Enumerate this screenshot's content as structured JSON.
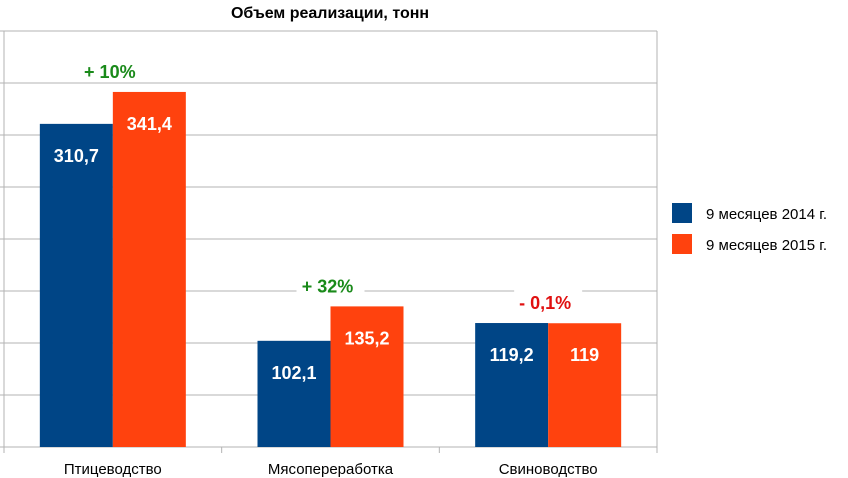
{
  "chart_data": {
    "type": "bar",
    "title": "Объем реализации, тонн",
    "categories": [
      "Птицеводство",
      "Мясопереработка",
      "Свиноводство"
    ],
    "series": [
      {
        "name": "9 месяцев 2014 г.",
        "values": [
          310.7,
          102.1,
          119.2
        ],
        "labels": [
          "310,7",
          "102,1",
          "119,2"
        ],
        "color": "#004586"
      },
      {
        "name": "9 месяцев 2015 г.",
        "values": [
          341.4,
          135.2,
          119
        ],
        "labels": [
          "341,4",
          "135,2",
          "119"
        ],
        "color": "#ff420e"
      }
    ],
    "annotations": [
      {
        "text": "+ 10%",
        "color": "#1a8a1a"
      },
      {
        "text": "+ 32%",
        "color": "#1a8a1a"
      },
      {
        "text": "- 0,1%",
        "color": "#e01010"
      }
    ],
    "ylim": [
      0,
      400
    ],
    "ytick_step": 50,
    "grid": true,
    "legend": "right"
  }
}
